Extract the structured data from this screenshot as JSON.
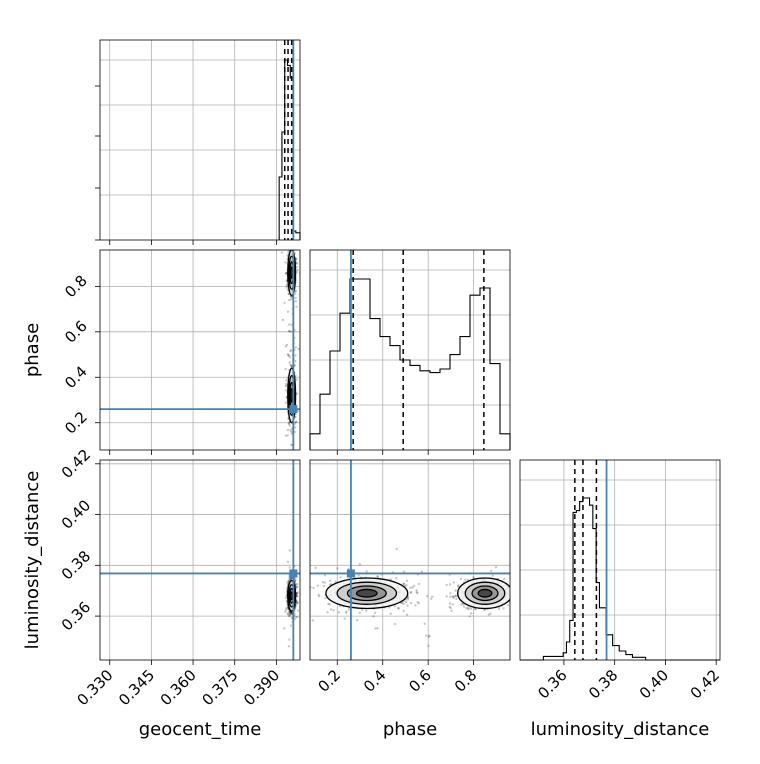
{
  "chart_data": {
    "type": "corner",
    "parameters": [
      "geocent_time",
      "phase",
      "luminosity_distance"
    ],
    "axis_labels": {
      "geocent_time": "geocent_time",
      "phase": "phase",
      "luminosity_distance": "luminosity_distance"
    },
    "ranges": {
      "geocent_time": [
        0.3265,
        0.3985
      ],
      "phase": [
        0.08,
        0.96
      ],
      "luminosity_distance": [
        0.3427,
        0.4215
      ]
    },
    "ticks": {
      "geocent_time": [
        {
          "v": 0.33,
          "label": "0.330"
        },
        {
          "v": 0.345,
          "label": "0.345"
        },
        {
          "v": 0.36,
          "label": "0.360"
        },
        {
          "v": 0.375,
          "label": "0.375"
        },
        {
          "v": 0.39,
          "label": "0.390"
        }
      ],
      "phase": [
        {
          "v": 0.2,
          "label": "0.2"
        },
        {
          "v": 0.4,
          "label": "0.4"
        },
        {
          "v": 0.6,
          "label": "0.6"
        },
        {
          "v": 0.8,
          "label": "0.8"
        }
      ],
      "luminosity_distance": [
        {
          "v": 0.36,
          "label": "0.36"
        },
        {
          "v": 0.38,
          "label": "0.38"
        },
        {
          "v": 0.4,
          "label": "0.40"
        },
        {
          "v": 0.42,
          "label": "0.42"
        }
      ]
    },
    "truths": {
      "geocent_time": 0.3961,
      "phase": 0.26,
      "luminosity_distance": 0.3768
    },
    "truth_color": "#4682b4",
    "quantiles": {
      "geocent_time": [
        0.393,
        0.3942,
        0.3955
      ],
      "phase": [
        0.27,
        0.49,
        0.845
      ],
      "luminosity_distance": [
        0.3643,
        0.3675,
        0.3728
      ]
    },
    "histograms": {
      "geocent_time": {
        "edges": [
          0.391,
          0.392,
          0.393,
          0.394,
          0.395,
          0.396,
          0.397,
          0.3985
        ],
        "counts": [
          0.35,
          0.6,
          1.0,
          0.97,
          0.9,
          0.05,
          0.04
        ]
      },
      "phase": {
        "edges": [
          0.08,
          0.124,
          0.168,
          0.212,
          0.256,
          0.3,
          0.344,
          0.388,
          0.432,
          0.476,
          0.52,
          0.564,
          0.608,
          0.652,
          0.696,
          0.74,
          0.784,
          0.828,
          0.872,
          0.916,
          0.96
        ],
        "counts": [
          0.09,
          0.31,
          0.55,
          0.76,
          0.95,
          0.95,
          0.73,
          0.63,
          0.58,
          0.5,
          0.47,
          0.44,
          0.43,
          0.45,
          0.53,
          0.63,
          0.86,
          0.9,
          0.48,
          0.09
        ]
      },
      "luminosity_distance": {
        "edges": [
          0.3427,
          0.3519,
          0.3597,
          0.361,
          0.3623,
          0.3636,
          0.3649,
          0.3662,
          0.3675,
          0.3688,
          0.3701,
          0.3714,
          0.3727,
          0.374,
          0.3766,
          0.3792,
          0.3818,
          0.3844,
          0.387,
          0.3922,
          0.4215
        ],
        "counts": [
          0.0,
          0.02,
          0.04,
          0.1,
          0.22,
          0.82,
          0.83,
          0.88,
          0.9,
          0.9,
          0.86,
          0.73,
          0.43,
          0.29,
          0.14,
          0.08,
          0.05,
          0.03,
          0.015,
          0.0
        ]
      }
    },
    "scatter": {
      "phase_vs_geocent_time": {
        "x_center": 0.3955,
        "x_sigma": 0.0007,
        "y_modes": [
          {
            "mu": 0.86,
            "sigma": 0.05,
            "weight": 0.55
          },
          {
            "mu": 0.32,
            "sigma": 0.06,
            "weight": 0.45
          }
        ]
      },
      "luminosity_distance_vs_geocent_time": {
        "x_center": 0.3955,
        "x_sigma": 0.0007,
        "y_center": 0.368,
        "y_sigma": 0.003
      },
      "luminosity_distance_vs_phase": {
        "x_modes": [
          {
            "mu": 0.33,
            "sigma": 0.09,
            "weight": 0.55
          },
          {
            "mu": 0.85,
            "sigma": 0.06,
            "weight": 0.45
          }
        ],
        "y_center": 0.369,
        "y_sigma": 0.003
      }
    },
    "grid": true,
    "legend": "none"
  }
}
